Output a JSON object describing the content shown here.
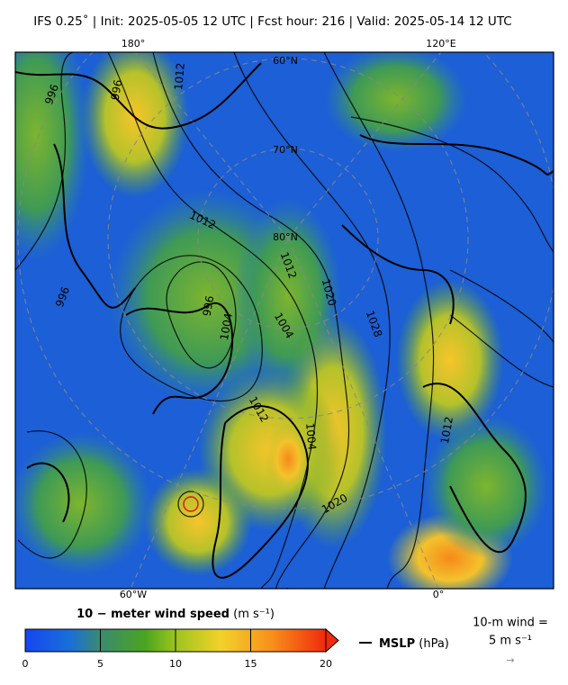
{
  "header": {
    "title": "IFS 0.25˚  |  Init: 2025-05-05 12 UTC  |  Fcst hour: 216  |  Valid: 2025-05-14 12 UTC"
  },
  "map": {
    "lon_labels_top": [
      "180°",
      "120°E"
    ],
    "lon_labels_bottom": [
      "60°W",
      "0°"
    ],
    "lat_labels": [
      "60°N",
      "70°N",
      "80°N"
    ],
    "contour_labels": [
      "996",
      "996",
      "1012",
      "1012",
      "1012",
      "1020",
      "1028",
      "996",
      "1004",
      "1004",
      "1012",
      "1004",
      "1020",
      "1012",
      "996"
    ]
  },
  "colorbar": {
    "title": "10 − meter wind speed",
    "unit": "(m s⁻¹)",
    "lim": [
      0,
      20
    ],
    "ticks": [
      0,
      5,
      10,
      15,
      20
    ]
  },
  "legend": {
    "mslp": "MSLP",
    "mslp_unit": "(hPa)",
    "wind_ref": "10-m wind =",
    "wind_ref_value": "5 m s⁻¹",
    "arrow": "→"
  }
}
